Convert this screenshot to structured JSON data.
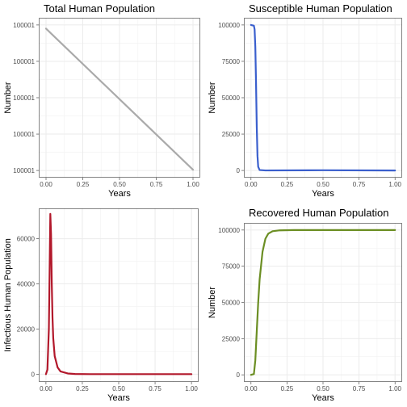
{
  "chart_data": [
    {
      "type": "line",
      "title": "Total Human Population",
      "xlabel": "Years",
      "ylabel": "Number",
      "xlim": [
        0,
        1
      ],
      "x_ticks": [
        0.0,
        0.25,
        0.5,
        0.75,
        1.0
      ],
      "x_tick_labels": [
        "0.00",
        "0.25",
        "0.50",
        "0.75",
        "1.00"
      ],
      "ylim": [
        0,
        4
      ],
      "y_ticks": [
        0,
        1,
        2,
        3,
        4
      ],
      "y_tick_labels": [
        "100001",
        "100001",
        "100001",
        "100001",
        "100001"
      ],
      "grid": true,
      "color": "#aaaaaa",
      "series": [
        {
          "x": [
            0.0,
            1.0
          ],
          "y": [
            3.9,
            0.02
          ]
        }
      ]
    },
    {
      "type": "line",
      "title": "Susceptible Human Population",
      "xlabel": "Years",
      "ylabel": "Number",
      "xlim": [
        0,
        1
      ],
      "x_ticks": [
        0.0,
        0.25,
        0.5,
        0.75,
        1.0
      ],
      "x_tick_labels": [
        "0.00",
        "0.25",
        "0.50",
        "0.75",
        "1.00"
      ],
      "ylim": [
        0,
        100000
      ],
      "y_ticks": [
        0,
        25000,
        50000,
        75000,
        100000
      ],
      "y_tick_labels": [
        "0",
        "25000",
        "50000",
        "75000",
        "100000"
      ],
      "grid": true,
      "color": "#3a5fcd",
      "series": [
        {
          "x": [
            0.0,
            0.02,
            0.025,
            0.03,
            0.035,
            0.04,
            0.045,
            0.05,
            0.06,
            0.1,
            0.5,
            1.0
          ],
          "y": [
            100000,
            99500,
            97000,
            85000,
            60000,
            30000,
            10000,
            2500,
            300,
            20,
            150,
            0
          ]
        }
      ]
    },
    {
      "type": "line",
      "title": "",
      "xlabel": "Years",
      "ylabel": "Infectious Human Population",
      "xlim": [
        0,
        1
      ],
      "x_ticks": [
        0.0,
        0.25,
        0.5,
        0.75,
        1.0
      ],
      "x_tick_labels": [
        "0.00",
        "0.25",
        "0.50",
        "0.75",
        "1.00"
      ],
      "ylim": [
        0,
        70000
      ],
      "y_ticks": [
        0,
        20000,
        40000,
        60000
      ],
      "y_tick_labels": [
        "0",
        "20000",
        "40000",
        "60000"
      ],
      "grid": true,
      "color": "#b2182b",
      "series": [
        {
          "x": [
            0.0,
            0.01,
            0.02,
            0.025,
            0.03,
            0.035,
            0.04,
            0.045,
            0.05,
            0.06,
            0.08,
            0.1,
            0.15,
            0.2,
            0.3,
            1.0
          ],
          "y": [
            0,
            2000,
            20000,
            45000,
            71000,
            62000,
            40000,
            25000,
            16000,
            8000,
            3000,
            1200,
            300,
            80,
            10,
            0
          ]
        }
      ]
    },
    {
      "type": "line",
      "title": "Recovered Human Population",
      "xlabel": "Years",
      "ylabel": "Number",
      "xlim": [
        0,
        1
      ],
      "x_ticks": [
        0.0,
        0.25,
        0.5,
        0.75,
        1.0
      ],
      "x_tick_labels": [
        "0.00",
        "0.25",
        "0.50",
        "0.75",
        "1.00"
      ],
      "ylim": [
        0,
        100000
      ],
      "y_ticks": [
        0,
        25000,
        50000,
        75000,
        100000
      ],
      "y_tick_labels": [
        "0",
        "25000",
        "50000",
        "75000",
        "100000"
      ],
      "grid": true,
      "color": "#6b8e23",
      "series": [
        {
          "x": [
            0.0,
            0.02,
            0.03,
            0.04,
            0.05,
            0.06,
            0.08,
            0.1,
            0.12,
            0.15,
            0.2,
            0.3,
            1.0
          ],
          "y": [
            0,
            500,
            10000,
            30000,
            50000,
            66000,
            85000,
            94000,
            97500,
            99200,
            99800,
            100000,
            100000
          ]
        }
      ]
    }
  ]
}
